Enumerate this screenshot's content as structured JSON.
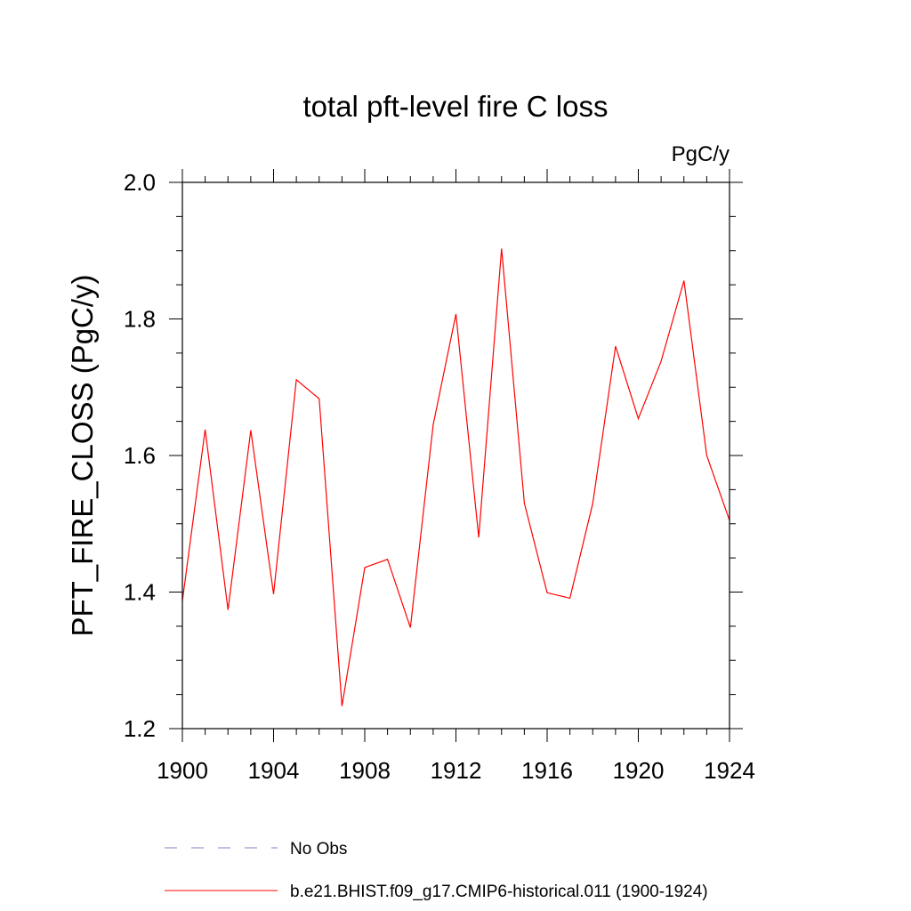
{
  "chart_data": {
    "type": "line",
    "title": "total pft-level fire C loss",
    "units_label": "PgC/y",
    "xlabel": "",
    "ylabel": "PFT_FIRE_CLOSS  (PgC/y)",
    "xlim": [
      1900,
      1924
    ],
    "ylim": [
      1.2,
      2.0
    ],
    "x_ticks": [
      1900,
      1904,
      1908,
      1912,
      1916,
      1920,
      1924
    ],
    "y_ticks": [
      1.2,
      1.4,
      1.6,
      1.8,
      2.0
    ],
    "y_tick_labels": [
      "1.2",
      "1.4",
      "1.6",
      "1.8",
      "2.0"
    ],
    "grid": false,
    "legend_position": "bottom",
    "series": [
      {
        "name": "b.e21.BHIST.f09_g17.CMIP6-historical.011 (1900-1924)",
        "color": "#ff0000",
        "style": "solid",
        "x": [
          1900,
          1901,
          1902,
          1903,
          1904,
          1905,
          1906,
          1907,
          1908,
          1909,
          1910,
          1911,
          1912,
          1913,
          1914,
          1915,
          1916,
          1917,
          1918,
          1919,
          1920,
          1921,
          1922,
          1923,
          1924
        ],
        "values": [
          1.387,
          1.638,
          1.374,
          1.637,
          1.397,
          1.711,
          1.683,
          1.233,
          1.436,
          1.448,
          1.348,
          1.645,
          1.807,
          1.48,
          1.903,
          1.53,
          1.399,
          1.391,
          1.53,
          1.76,
          1.654,
          1.738,
          1.856,
          1.6,
          1.505
        ]
      }
    ],
    "legend": [
      {
        "label": "No Obs",
        "color": "#8080c0",
        "style": "dashed"
      },
      {
        "label": "b.e21.BHIST.f09_g17.CMIP6-historical.011 (1900-1924)",
        "color": "#ff0000",
        "style": "solid"
      }
    ]
  }
}
